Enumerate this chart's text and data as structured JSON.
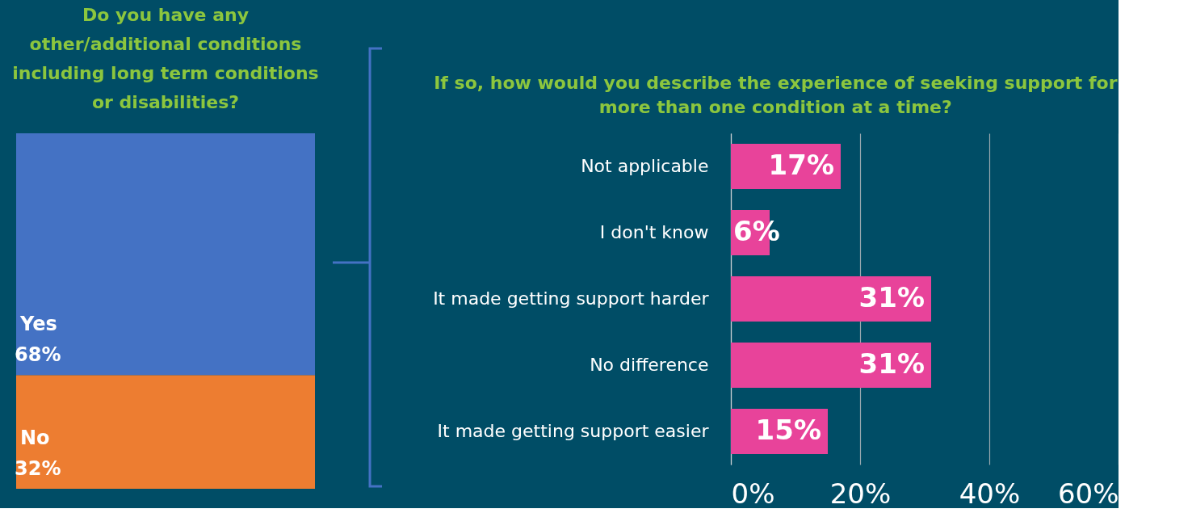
{
  "chart_data": [
    {
      "type": "bar",
      "stacked": true,
      "title": "Do you have any other/additional conditions including long term conditions or disabilities?",
      "categories": [
        null
      ],
      "series": [
        {
          "name": "No",
          "color": "#ed7d31",
          "values": [
            32
          ],
          "value_labels": [
            "32%"
          ]
        },
        {
          "name": "Yes",
          "color": "#4472c4",
          "values": [
            68
          ],
          "value_labels": [
            "68%"
          ]
        }
      ]
    },
    {
      "type": "bar",
      "orientation": "horizontal",
      "title": "If so, how would you describe the experience of seeking support for more than one condition at a time?",
      "categories": [
        "Not applicable",
        "I don't know",
        "It made getting support harder",
        "No difference",
        "It made getting support easier"
      ],
      "values": [
        17,
        6,
        31,
        31,
        15
      ],
      "color": "#e8439a",
      "value_labels": [
        "17%",
        "6%",
        "31%",
        "31%",
        "15%"
      ],
      "xlim": [
        0,
        60
      ],
      "xticks": [
        {
          "value": 0,
          "label": "0%"
        },
        {
          "value": 20,
          "label": "20%"
        },
        {
          "value": 40,
          "label": "40%"
        },
        {
          "value": 60,
          "label": "60%"
        }
      ],
      "grid": "x"
    }
  ]
}
